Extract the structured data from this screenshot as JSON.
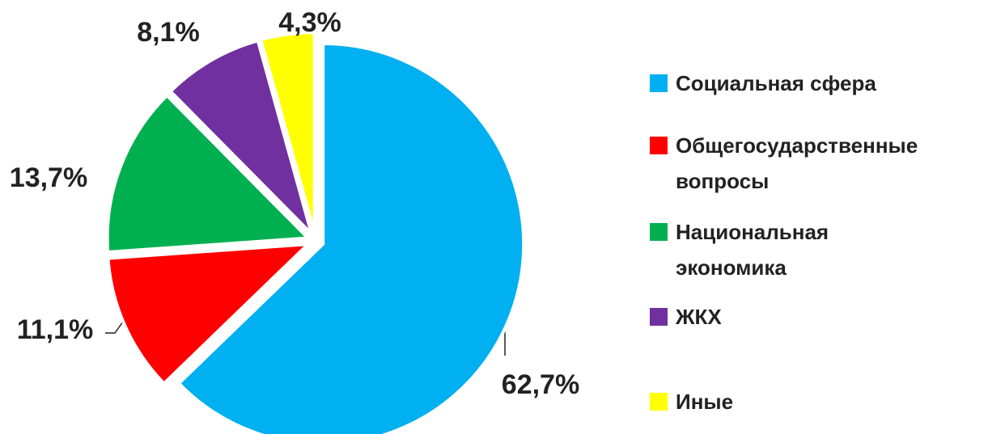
{
  "chart_data": {
    "type": "pie",
    "categories": [
      "Социальная сфера",
      "Общегосударственные вопросы",
      "Национальная экономика",
      "ЖКХ",
      "Иные"
    ],
    "values": [
      62.7,
      11.1,
      13.7,
      8.1,
      4.3
    ],
    "value_labels": [
      "62,7%",
      "11,1%",
      "13,7%",
      "8,1%",
      "4,3%"
    ],
    "colors": [
      "#00b0f0",
      "#ff0000",
      "#00b050",
      "#7030a0",
      "#ffff00"
    ],
    "legend": "right"
  }
}
